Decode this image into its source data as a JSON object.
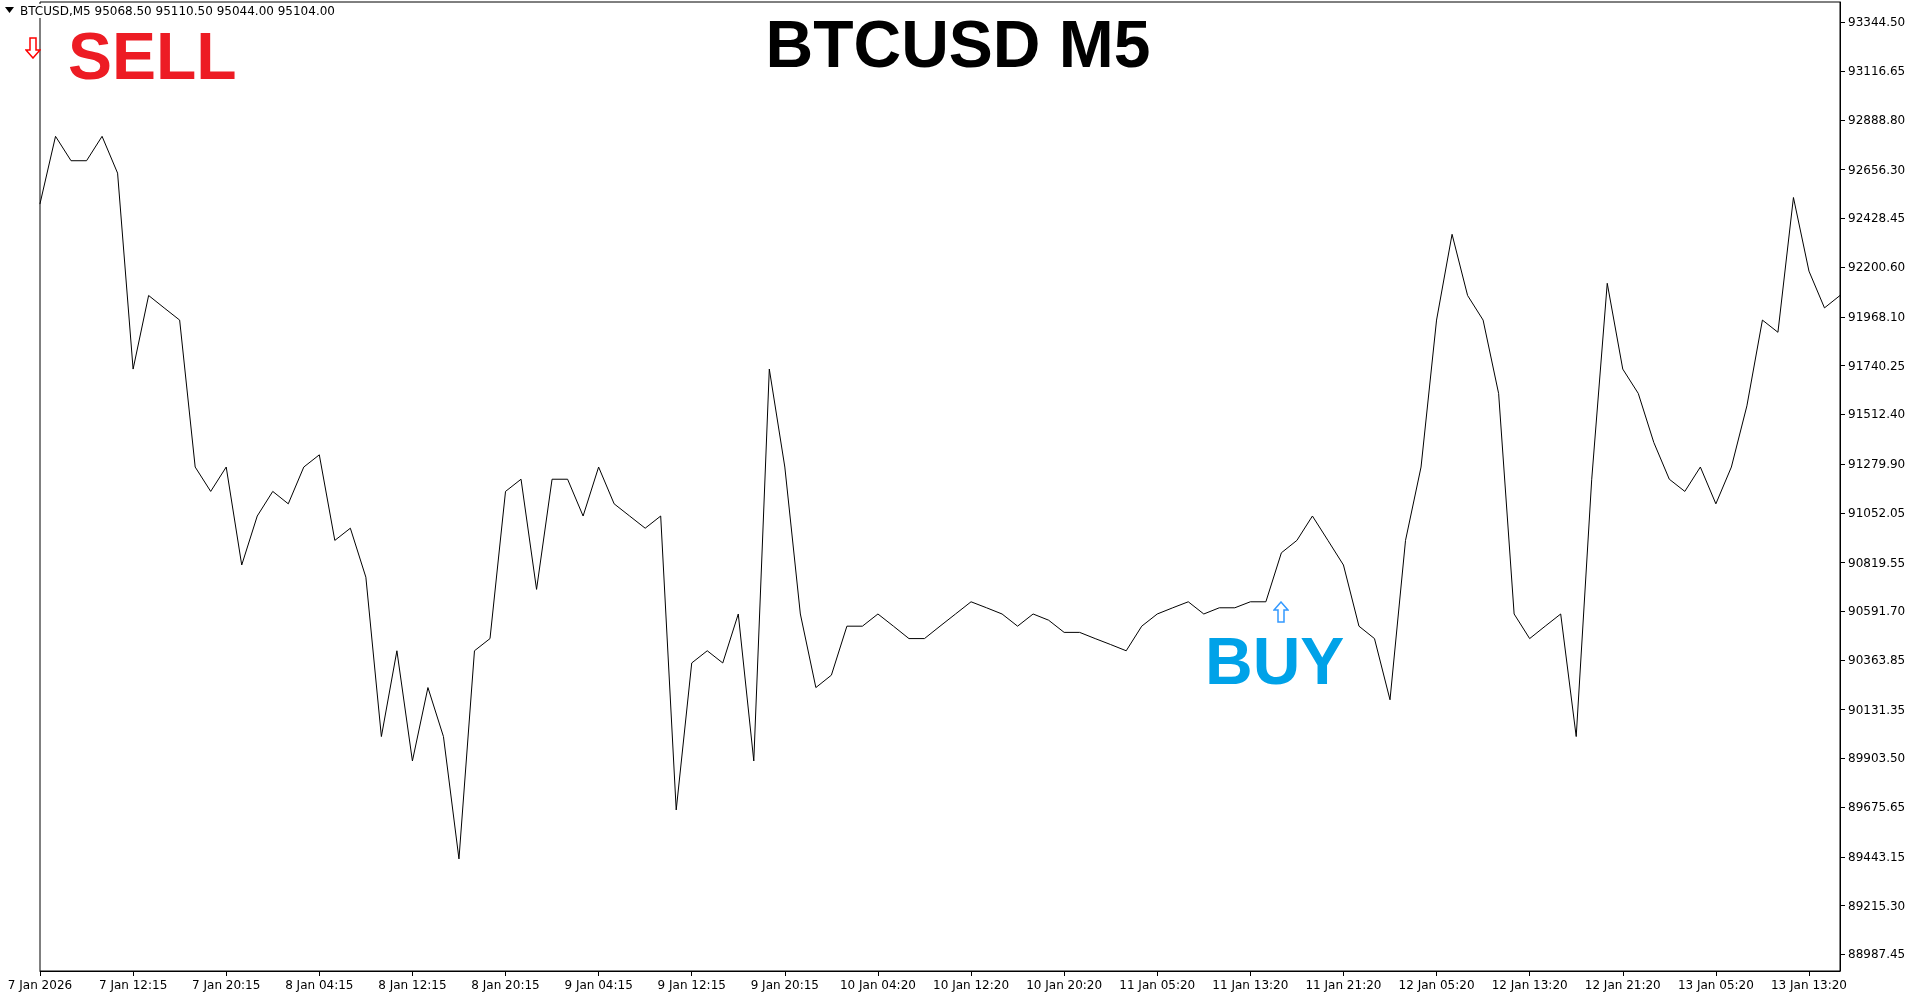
{
  "chart_data": {
    "type": "line",
    "title": "BTCUSD M5",
    "annotations": [
      "BTCUSD,M5  95068.50 95110.50 95044.00 95104.00",
      "SELL",
      "BUY"
    ],
    "categories": [
      "7 Jan 2026",
      null,
      null,
      null,
      null,
      null,
      "7 Jan 12:15",
      null,
      null,
      null,
      null,
      null,
      "7 Jan 20:15",
      null,
      null,
      null,
      null,
      null,
      "8 Jan 04:15",
      null,
      null,
      null,
      null,
      null,
      "8 Jan 12:15",
      null,
      null,
      null,
      null,
      null,
      "8 Jan 20:15",
      null,
      null,
      null,
      null,
      null,
      "9 Jan 04:15",
      null,
      null,
      null,
      null,
      null,
      "9 Jan 12:15",
      null,
      null,
      null,
      null,
      null,
      "9 Jan 20:15",
      null,
      null,
      null,
      null,
      null,
      "10 Jan 04:20",
      null,
      null,
      null,
      null,
      null,
      "10 Jan 12:20",
      null,
      null,
      null,
      null,
      null,
      "10 Jan 20:20",
      null,
      null,
      null,
      null,
      null,
      "11 Jan 05:20",
      null,
      null,
      null,
      null,
      null,
      "11 Jan 13:20",
      null,
      null,
      null,
      null,
      null,
      "11 Jan 21:20",
      null,
      null,
      null,
      null,
      null,
      "12 Jan 05:20",
      null,
      null,
      null,
      null,
      null,
      "12 Jan 13:20",
      null,
      null,
      null,
      null,
      null,
      "12 Jan 21:20",
      null,
      null,
      null,
      null,
      null,
      "13 Jan 05:20",
      null,
      null,
      null,
      null,
      null,
      "13 Jan 13:20",
      null,
      null
    ],
    "series": [
      {
        "color": "#000000",
        "values": [
          92497,
          92812,
          92698,
          92698,
          92812,
          92640,
          91724,
          92068,
          92010,
          91953,
          91266,
          91152,
          91266,
          90808,
          91037,
          91152,
          91094,
          91266,
          91323,
          90923,
          90980,
          90751,
          90006,
          90407,
          89892,
          90235,
          90006,
          89434,
          90407,
          90464,
          91152,
          91209,
          90694,
          91209,
          91209,
          91037,
          91266,
          91094,
          91037,
          90980,
          91037,
          89663,
          90350,
          90407,
          90350,
          90579,
          89892,
          91724,
          91266,
          90579,
          90235,
          90293,
          90522,
          90522,
          90579,
          90522,
          90464,
          90464,
          90522,
          90579,
          90636,
          90608,
          90579,
          90522,
          90579,
          90550,
          90493,
          90493,
          90464,
          90436,
          90407,
          90522,
          90579,
          90608,
          90636,
          90579,
          90608,
          90608,
          90636,
          90636,
          90865,
          90923,
          91037,
          90923,
          90808,
          90522,
          90464,
          90178,
          90923,
          91266,
          91953,
          92354,
          92068,
          91953,
          91610,
          90579,
          90464,
          90522,
          90579,
          90006,
          91209,
          92125,
          91724,
          91610,
          91381,
          91209,
          91152,
          91266,
          91094,
          91266,
          91552,
          91953,
          91896,
          92526,
          92182,
          92010,
          92068
        ]
      }
    ],
    "ylim": [
      88910,
      93440
    ],
    "yticks": [
      {
        "value": 88987.45,
        "label": "88987.45"
      },
      {
        "value": 89215.3,
        "label": "89215.30"
      },
      {
        "value": 89443.15,
        "label": "89443.15"
      },
      {
        "value": 89675.65,
        "label": "89675.65"
      },
      {
        "value": 89903.5,
        "label": "89903.50"
      },
      {
        "value": 90131.35,
        "label": "90131.35"
      },
      {
        "value": 90363.85,
        "label": "90363.85"
      },
      {
        "value": 90591.7,
        "label": "90591.70"
      },
      {
        "value": 90819.55,
        "label": "90819.55"
      },
      {
        "value": 91052.05,
        "label": "91052.05"
      },
      {
        "value": 91279.9,
        "label": "91279.90"
      },
      {
        "value": 91512.4,
        "label": "91512.40"
      },
      {
        "value": 91740.25,
        "label": "91740.25"
      },
      {
        "value": 91968.1,
        "label": "91968.10"
      },
      {
        "value": 92200.6,
        "label": "92200.60"
      },
      {
        "value": 92428.45,
        "label": "92428.45"
      },
      {
        "value": 92656.3,
        "label": "92656.30"
      },
      {
        "value": 92888.8,
        "label": "92888.80"
      },
      {
        "value": 93116.65,
        "label": "93116.65"
      },
      {
        "value": 93344.5,
        "label": "93344.50"
      }
    ],
    "grid": false,
    "marker": "none",
    "line_style": "solid"
  }
}
